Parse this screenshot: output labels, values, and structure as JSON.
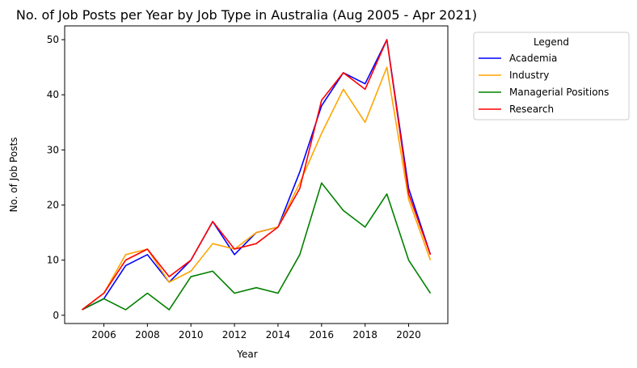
{
  "chart_data": {
    "type": "line",
    "title": "No. of Job Posts per Year by Job Type in Australia (Aug 2005 - Apr 2021)",
    "xlabel": "Year",
    "ylabel": "No. of Job Posts",
    "xlim": [
      2004.2,
      2021.8
    ],
    "ylim": [
      -1.5,
      52.5
    ],
    "xticks": [
      2006,
      2008,
      2010,
      2012,
      2014,
      2016,
      2018,
      2020
    ],
    "yticks": [
      0,
      10,
      20,
      30,
      40,
      50
    ],
    "grid": false,
    "legend": {
      "title": "Legend",
      "placement": "outside-right"
    },
    "x": [
      2005,
      2006,
      2007,
      2008,
      2009,
      2010,
      2011,
      2012,
      2013,
      2014,
      2015,
      2016,
      2017,
      2018,
      2019,
      2020,
      2021
    ],
    "series": [
      {
        "name": "Academia",
        "color": "#0000ff",
        "values": [
          1,
          3,
          9,
          11,
          6,
          10,
          17,
          11,
          15,
          16,
          26,
          38,
          44,
          42,
          50,
          23,
          11
        ]
      },
      {
        "name": "Industry",
        "color": "#ffa500",
        "values": [
          1,
          4,
          11,
          12,
          6,
          8,
          13,
          12,
          15,
          16,
          24,
          33,
          41,
          35,
          45,
          21,
          10
        ]
      },
      {
        "name": "Managerial Positions",
        "color": "#008000",
        "values": [
          1,
          3,
          1,
          4,
          1,
          7,
          8,
          4,
          5,
          4,
          11,
          24,
          19,
          16,
          22,
          10,
          4
        ]
      },
      {
        "name": "Research",
        "color": "#ff0000",
        "values": [
          1,
          4,
          10,
          12,
          7,
          10,
          17,
          12,
          13,
          16,
          23,
          39,
          44,
          41,
          50,
          22,
          11
        ]
      }
    ]
  }
}
